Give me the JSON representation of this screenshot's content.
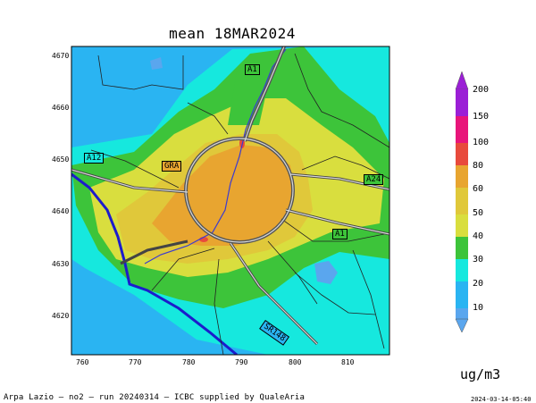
{
  "title": "mean 18MAR2024",
  "y_ticks": [
    "4670",
    "4660",
    "4650",
    "4640",
    "4630",
    "4620"
  ],
  "x_ticks": [
    "760",
    "770",
    "780",
    "790",
    "800",
    "810"
  ],
  "road_labels": {
    "a1_north": "A1",
    "a12": "A12",
    "gra": "GRA",
    "a24": "A24",
    "a1_east": "A1",
    "sr148": "SR148"
  },
  "colorbar": {
    "levels": [
      "200",
      "150",
      "100",
      "80",
      "60",
      "50",
      "40",
      "30",
      "20",
      "10"
    ],
    "colors": {
      "above_150": "#9b1fd6",
      "100_150": "#e8157a",
      "80_100": "#e84a3c",
      "60_80": "#e8a530",
      "50_60": "#e0c83a",
      "40_50": "#d9de3e",
      "30_40": "#3dc43a",
      "20_30": "#16e8de",
      "10_20": "#2ab4f2",
      "below_10": "#5aa6ee"
    }
  },
  "unit": "ug/m3",
  "footer": "Arpa Lazio — no2 — run 20240314 — ICBC supplied by QualeAria",
  "timestamp": "2024-03-14-05:40"
}
